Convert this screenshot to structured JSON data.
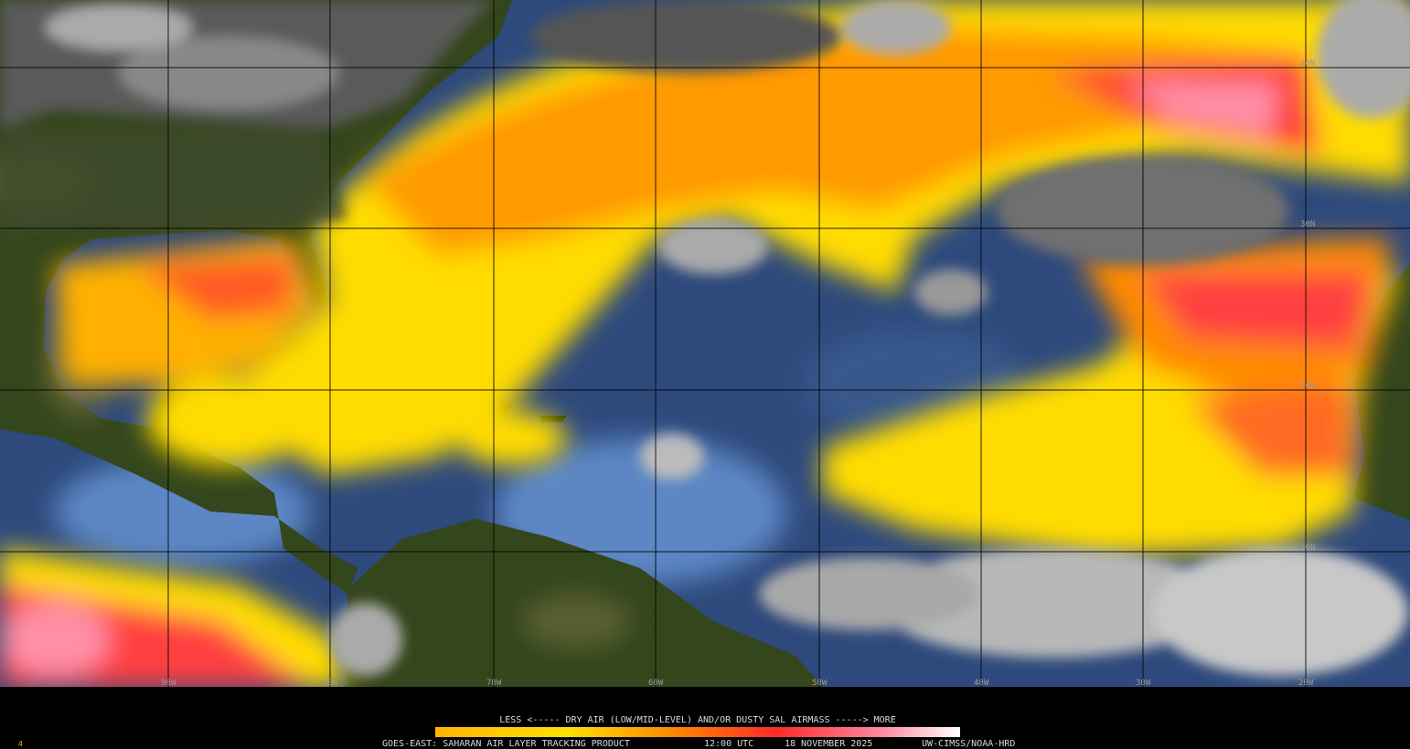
{
  "map": {
    "lat_labels": [
      "40N",
      "30N",
      "20N",
      "10N"
    ],
    "lon_labels": [
      "90W",
      "80W",
      "70W",
      "60W",
      "50W",
      "40W",
      "30W",
      "20W"
    ],
    "legend": "LESS <----- DRY AIR (LOW/MID-LEVEL) AND/OR DUSTY SAL AIRMASS -----> MORE"
  },
  "footer": {
    "frame": "4",
    "product": "GOES-EAST: SAHARAN AIR LAYER TRACKING PRODUCT",
    "time": "12:00 UTC",
    "date": "18 NOVEMBER 2025",
    "credit": "UW-CIMSS/NOAA-HRD"
  }
}
